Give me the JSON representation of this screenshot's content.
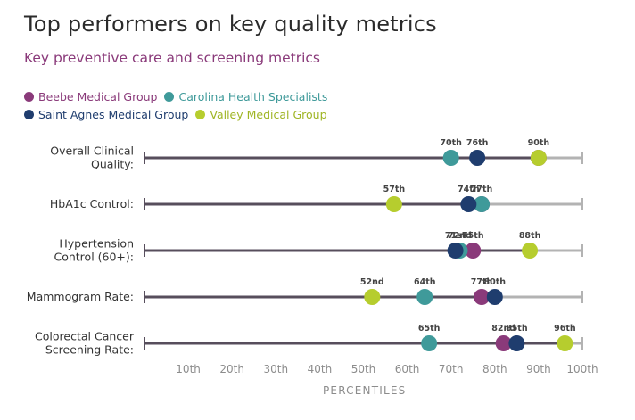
{
  "title": "Top performers on key quality metrics",
  "subtitle": "Key preventive care and screening metrics",
  "colors": {
    "track_dark": "#574e5c",
    "track_light": "#b3b3b3",
    "text": "#333333",
    "axis_text": "#8c8c8c"
  },
  "legend": [
    {
      "label": "Beebe Medical Group",
      "color": "#8a3a7a"
    },
    {
      "label": "Carolina Health Specialists",
      "color": "#3f9a9a"
    },
    {
      "label": "Saint Agnes Medical Group",
      "color": "#1f3d6e"
    },
    {
      "label": "Valley Medical Group",
      "color": "#b6cd2e"
    }
  ],
  "chart_data": {
    "type": "scatter",
    "title": "Top performers on key quality metrics",
    "subtitle": "Key preventive care and screening metrics",
    "xlabel": "PERCENTILES",
    "xlim": [
      0,
      100
    ],
    "ticks": [
      10,
      20,
      30,
      40,
      50,
      60,
      70,
      80,
      90,
      100
    ],
    "tick_labels": [
      "10th",
      "20th",
      "30th",
      "40th",
      "50th",
      "60th",
      "70th",
      "80th",
      "90th",
      "100th"
    ],
    "categories": [
      {
        "label_lines": [
          "Overall Clinical",
          "Quality:"
        ]
      },
      {
        "label_lines": [
          "HbA1c Control:"
        ]
      },
      {
        "label_lines": [
          "Hypertension",
          "Control (60+):"
        ]
      },
      {
        "label_lines": [
          "Mammogram Rate:"
        ]
      },
      {
        "label_lines": [
          "Colorectal Cancer",
          "Screening Rate:"
        ]
      }
    ],
    "series": [
      {
        "name": "Beebe Medical Group",
        "color": "#8a3a7a",
        "values": [
          90,
          77,
          75,
          77,
          82
        ],
        "labels": [
          "90th",
          "77th",
          "75th",
          "77th",
          "82nd"
        ]
      },
      {
        "name": "Carolina Health Specialists",
        "color": "#3f9a9a",
        "values": [
          70,
          77,
          72,
          64,
          65
        ],
        "labels": [
          "70th",
          "77th",
          "72nd",
          "64th",
          "65th"
        ]
      },
      {
        "name": "Saint Agnes Medical Group",
        "color": "#1f3d6e",
        "values": [
          76,
          74,
          71,
          80,
          85
        ],
        "labels": [
          "76th",
          "74th",
          "71st",
          "80th",
          "85th"
        ]
      },
      {
        "name": "Valley Medical Group",
        "color": "#b6cd2e",
        "values": [
          90,
          57,
          88,
          52,
          96
        ],
        "labels": [
          "90th",
          "57th",
          "88th",
          "52nd",
          "96th"
        ]
      }
    ],
    "point_labels": [
      [
        {
          "text": "70th",
          "value": 70
        },
        {
          "text": "76th",
          "value": 76
        },
        {
          "text": "90th",
          "value": 90
        }
      ],
      [
        {
          "text": "57th",
          "value": 57
        },
        {
          "text": "74th",
          "value": 74
        },
        {
          "text": "77th",
          "value": 77
        }
      ],
      [
        {
          "text": "71st",
          "value": 71
        },
        {
          "text": "72nd",
          "value": 72
        },
        {
          "text": "75th",
          "value": 75
        },
        {
          "text": "88th",
          "value": 88
        }
      ],
      [
        {
          "text": "52nd",
          "value": 52
        },
        {
          "text": "64th",
          "value": 64
        },
        {
          "text": "77th",
          "value": 77
        },
        {
          "text": "80th",
          "value": 80
        }
      ],
      [
        {
          "text": "65th",
          "value": 65
        },
        {
          "text": "82nd",
          "value": 82
        },
        {
          "text": "85th",
          "value": 85
        },
        {
          "text": "96th",
          "value": 96
        }
      ]
    ]
  }
}
